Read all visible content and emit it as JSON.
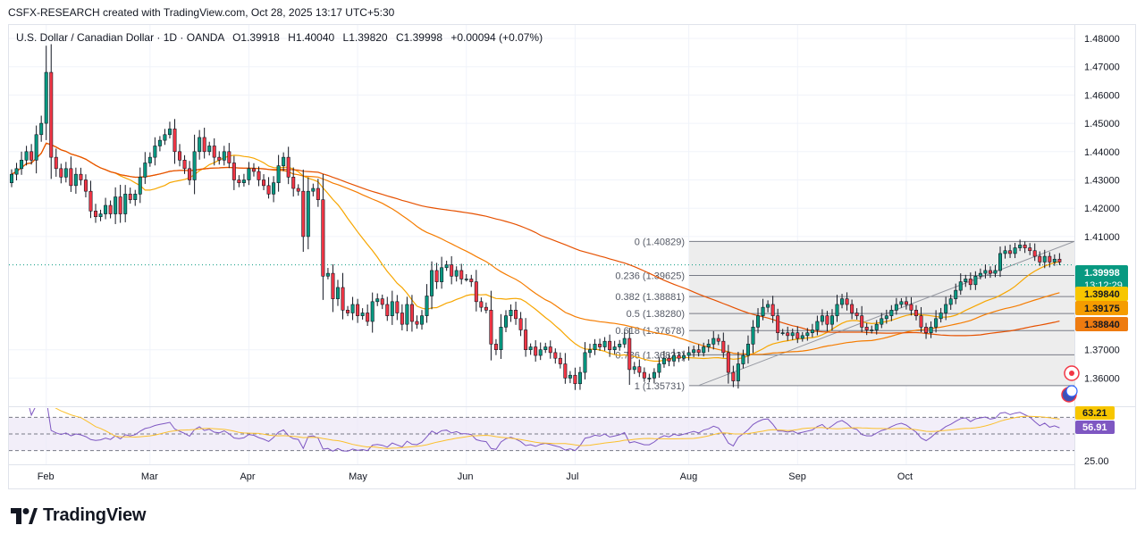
{
  "caption": "CSFX-RESEARCH created with TradingView.com, Oct 28, 2025 13:17 UTC+5:30",
  "brand": "TradingView",
  "colors": {
    "up": "#089981",
    "down": "#f23645",
    "ma_fast": "#f7a600",
    "ma_mid": "#f57c00",
    "ma_slow": "#e65100",
    "rsi": "#7e57c2",
    "rsi_ma": "#fbc02d",
    "fib_line": "#787b86"
  },
  "header": {
    "symbol": "U.S. Dollar / Canadian Dollar · 1D · OANDA",
    "open": "O1.39918",
    "high": "H1.40040",
    "low": "L1.39820",
    "close": "C1.39998",
    "change": "+0.00094 (+0.07%)"
  },
  "price_badges": [
    {
      "value": "1.39998",
      "sub": "13:12:29",
      "color": "#089981",
      "price": 1.39998
    },
    {
      "value": "1.39840",
      "color": "#f7c600",
      "price": 1.3984
    },
    {
      "value": "1.39175",
      "color": "#f59c00",
      "price": 1.39175
    },
    {
      "value": "1.38840",
      "color": "#ee7b10",
      "price": 1.3884
    }
  ],
  "rsi_badges": [
    {
      "value": "63.21",
      "color": "#f7c600",
      "level": 63.21
    },
    {
      "value": "56.91",
      "color": "#7e57c2",
      "level": 56.91
    }
  ],
  "chart_data": {
    "type": "candlestick",
    "y_axis": {
      "ticks": [
        "1.48000",
        "1.47000",
        "1.46000",
        "1.45000",
        "1.44000",
        "1.43000",
        "1.42000",
        "1.41000",
        "1.37000",
        "1.36000"
      ],
      "range": [
        1.3525,
        1.4805
      ]
    },
    "x_axis": {
      "ticks": [
        "Feb",
        "Mar",
        "Apr",
        "May",
        "Jun",
        "Jul",
        "Aug",
        "Sep",
        "Oct"
      ]
    },
    "rsi_axis": {
      "ticks": [
        "25.00"
      ]
    },
    "fib_levels": [
      {
        "label": "0 (1.40829)",
        "price": 1.40829
      },
      {
        "label": "0.236 (1.39625)",
        "price": 1.39625
      },
      {
        "label": "0.382 (1.38881)",
        "price": 1.38881
      },
      {
        "label": "0.5 (1.38280)",
        "price": 1.3828
      },
      {
        "label": "0.618 (1.37678)",
        "price": 1.37678
      },
      {
        "label": "0.786 (1.36822)",
        "price": 1.36822
      },
      {
        "label": "1 (1.35731)",
        "price": 1.35731
      }
    ],
    "closes": [
      1.432,
      1.434,
      1.437,
      1.44,
      1.437,
      1.446,
      1.45,
      1.468,
      1.438,
      1.434,
      1.431,
      1.434,
      1.428,
      1.432,
      1.43,
      1.426,
      1.419,
      1.417,
      1.418,
      1.421,
      1.418,
      1.424,
      1.418,
      1.425,
      1.423,
      1.425,
      1.431,
      1.436,
      1.438,
      1.442,
      1.444,
      1.446,
      1.448,
      1.44,
      1.437,
      1.434,
      1.43,
      1.44,
      1.445,
      1.44,
      1.442,
      1.438,
      1.437,
      1.44,
      1.436,
      1.43,
      1.429,
      1.43,
      1.434,
      1.433,
      1.43,
      1.428,
      1.425,
      1.429,
      1.435,
      1.438,
      1.431,
      1.427,
      1.426,
      1.41,
      1.426,
      1.427,
      1.423,
      1.396,
      1.397,
      1.388,
      1.392,
      1.384,
      1.383,
      1.386,
      1.382,
      1.383,
      1.38,
      1.387,
      1.388,
      1.386,
      1.382,
      1.387,
      1.383,
      1.379,
      1.386,
      1.38,
      1.379,
      1.382,
      1.389,
      1.398,
      1.394,
      1.399,
      1.4,
      1.396,
      1.398,
      1.395,
      1.395,
      1.394,
      1.387,
      1.385,
      1.384,
      1.372,
      1.37,
      1.378,
      1.382,
      1.384,
      1.381,
      1.377,
      1.37,
      1.371,
      1.368,
      1.37,
      1.371,
      1.369,
      1.367,
      1.365,
      1.36,
      1.361,
      1.358,
      1.362,
      1.369,
      1.37,
      1.372,
      1.371,
      1.373,
      1.37,
      1.371,
      1.372,
      1.374,
      1.363,
      1.364,
      1.362,
      1.36,
      1.36,
      1.362,
      1.365,
      1.367,
      1.366,
      1.368,
      1.367,
      1.368,
      1.369,
      1.37,
      1.369,
      1.371,
      1.372,
      1.374,
      1.373,
      1.369,
      1.362,
      1.359,
      1.365,
      1.368,
      1.372,
      1.378,
      1.382,
      1.385,
      1.386,
      1.382,
      1.376,
      1.376,
      1.375,
      1.376,
      1.374,
      1.375,
      1.376,
      1.377,
      1.38,
      1.382,
      1.379,
      1.382,
      1.386,
      1.388,
      1.386,
      1.383,
      1.382,
      1.378,
      1.377,
      1.377,
      1.379,
      1.381,
      1.382,
      1.384,
      1.386,
      1.387,
      1.386,
      1.384,
      1.382,
      1.378,
      1.376,
      1.378,
      1.381,
      1.383,
      1.386,
      1.388,
      1.391,
      1.394,
      1.395,
      1.393,
      1.396,
      1.397,
      1.398,
      1.397,
      1.398,
      1.404,
      1.405,
      1.404,
      1.406,
      1.407,
      1.406,
      1.405,
      1.403,
      1.401,
      1.403,
      1.401,
      1.402,
      1.401
    ],
    "rsi_levels": [
      70,
      50,
      30
    ],
    "rsi_range": [
      22,
      78
    ]
  }
}
